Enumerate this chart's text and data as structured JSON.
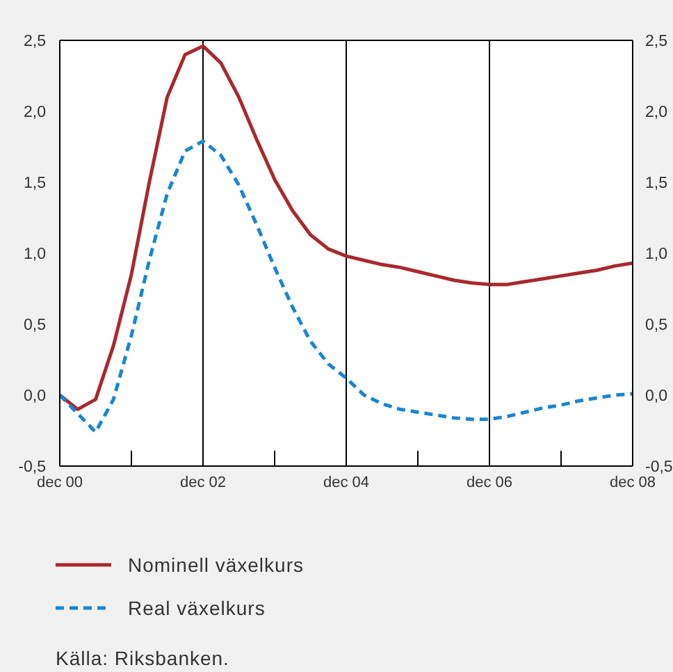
{
  "chart_data": {
    "type": "line",
    "categories": [
      "dec 00",
      null,
      null,
      null,
      null,
      null,
      null,
      null,
      "dec 02",
      null,
      null,
      null,
      null,
      null,
      null,
      null,
      "dec 04",
      null,
      null,
      null,
      null,
      null,
      null,
      null,
      "dec 06",
      null,
      null,
      null,
      null,
      null,
      null,
      null,
      "dec 08"
    ],
    "series": [
      {
        "name": "Nominell växelkurs",
        "color": "#a8292e",
        "line_style": "solid",
        "values": [
          0,
          -0.1,
          -0.03,
          0.35,
          0.85,
          1.5,
          2.1,
          2.4,
          2.46,
          2.34,
          2.1,
          1.8,
          1.52,
          1.3,
          1.13,
          1.03,
          0.98,
          0.95,
          0.92,
          0.9,
          0.87,
          0.84,
          0.81,
          0.79,
          0.78,
          0.78,
          0.8,
          0.82,
          0.84,
          0.86,
          0.88,
          0.91,
          0.93
        ]
      },
      {
        "name": "Real växelkurs",
        "color": "#1a85d0",
        "line_style": "dashed",
        "values": [
          0,
          -0.13,
          -0.26,
          -0.03,
          0.42,
          0.95,
          1.42,
          1.72,
          1.79,
          1.69,
          1.48,
          1.2,
          0.9,
          0.62,
          0.38,
          0.22,
          0.12,
          0.0,
          -0.06,
          -0.1,
          -0.12,
          -0.14,
          -0.16,
          -0.17,
          -0.17,
          -0.15,
          -0.12,
          -0.09,
          -0.07,
          -0.04,
          -0.02,
          0.0,
          0.01
        ]
      }
    ],
    "ylim": [
      -0.5,
      2.5
    ],
    "yticks": [
      {
        "value": -0.5,
        "label": "-0,5"
      },
      {
        "value": 0,
        "label": "0,0"
      },
      {
        "value": 0.5,
        "label": "0,5"
      },
      {
        "value": 1,
        "label": "1,0"
      },
      {
        "value": 1.5,
        "label": "1,5"
      },
      {
        "value": 2,
        "label": "2,0"
      },
      {
        "value": 2.5,
        "label": "2,5"
      }
    ],
    "y2lim": [
      -0.5,
      2.5
    ],
    "y2ticks": [
      {
        "value": -0.5,
        "label": "-0,5"
      },
      {
        "value": 0,
        "label": "0,0"
      },
      {
        "value": 0.5,
        "label": "0,5"
      },
      {
        "value": 1,
        "label": "1,0"
      },
      {
        "value": 1.5,
        "label": "1,5"
      },
      {
        "value": 2,
        "label": "2,0"
      },
      {
        "value": 2.5,
        "label": "2,5"
      }
    ],
    "grid": true,
    "legend": "bottom",
    "marker": "none",
    "annotations": [
      "Källa: Riksbanken."
    ]
  }
}
